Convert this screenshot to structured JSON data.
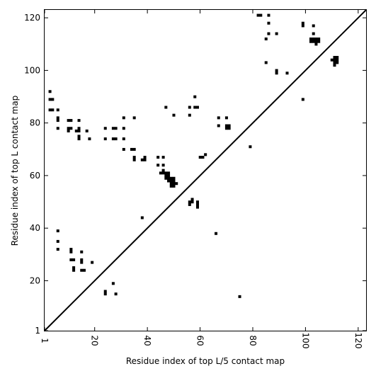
{
  "chart_data": {
    "type": "scatter",
    "title": "",
    "xlabel": "Residue index of top L/5 contact map",
    "ylabel": "Residue index of top L contact map",
    "xlim": [
      1,
      123
    ],
    "ylim": [
      1,
      123
    ],
    "x_ticks": [
      1,
      20,
      40,
      60,
      80,
      100,
      120
    ],
    "y_ticks": [
      1,
      20,
      40,
      60,
      80,
      100,
      120
    ],
    "x_tick_rotation_deg": 90,
    "grid": false,
    "legend": "none",
    "marker_color": "#000000",
    "diagonal": {
      "from": [
        1,
        1
      ],
      "to": [
        123,
        123
      ],
      "color": "#000000"
    },
    "series": [
      {
        "points_upper_left": [
          [
            3,
            92
          ],
          [
            3,
            89
          ],
          [
            4,
            89
          ],
          [
            3,
            85
          ],
          [
            4,
            85
          ],
          [
            6,
            85
          ],
          [
            6,
            82
          ],
          [
            6,
            81
          ],
          [
            6,
            78
          ],
          [
            10,
            81
          ],
          [
            11,
            81
          ],
          [
            14,
            81
          ],
          [
            10,
            78
          ],
          [
            11,
            78
          ],
          [
            10,
            77
          ],
          [
            13,
            77
          ],
          [
            14,
            78
          ],
          [
            14,
            77
          ],
          [
            14,
            75
          ],
          [
            14,
            74
          ],
          [
            17,
            77
          ],
          [
            18,
            74
          ],
          [
            24,
            78
          ],
          [
            24,
            74
          ],
          [
            27,
            78
          ],
          [
            28,
            78
          ],
          [
            27,
            74
          ],
          [
            28,
            74
          ],
          [
            31,
            82
          ],
          [
            31,
            78
          ],
          [
            31,
            74
          ],
          [
            31,
            70
          ],
          [
            34,
            70
          ],
          [
            35,
            70
          ],
          [
            35,
            82
          ],
          [
            35,
            67
          ],
          [
            35,
            66
          ],
          [
            38,
            66
          ],
          [
            39,
            66
          ],
          [
            39,
            67
          ],
          [
            44,
            67
          ],
          [
            46,
            67
          ],
          [
            44,
            64
          ],
          [
            46,
            64
          ],
          [
            47,
            86
          ],
          [
            50,
            83
          ],
          [
            56,
            86
          ],
          [
            56,
            83
          ],
          [
            58,
            90
          ],
          [
            58,
            86
          ],
          [
            59,
            86
          ],
          [
            45,
            61
          ],
          [
            46,
            61
          ],
          [
            46,
            62
          ],
          [
            47,
            61
          ],
          [
            47,
            60
          ],
          [
            48,
            61
          ],
          [
            48,
            60
          ],
          [
            47,
            59
          ],
          [
            48,
            59
          ],
          [
            48,
            58
          ],
          [
            49,
            59
          ],
          [
            49,
            58
          ],
          [
            50,
            58
          ],
          [
            50,
            59
          ],
          [
            49,
            57
          ],
          [
            49,
            56
          ],
          [
            50,
            57
          ],
          [
            50,
            56
          ],
          [
            51,
            57
          ],
          [
            60,
            67
          ],
          [
            61,
            67
          ],
          [
            62,
            68
          ],
          [
            67,
            82
          ],
          [
            70,
            82
          ],
          [
            67,
            79
          ],
          [
            70,
            79
          ],
          [
            71,
            79
          ],
          [
            70,
            78
          ],
          [
            71,
            78
          ],
          [
            79,
            71
          ],
          [
            82,
            121
          ],
          [
            83,
            121
          ],
          [
            86,
            121
          ],
          [
            86,
            118
          ],
          [
            86,
            114
          ],
          [
            85,
            112
          ],
          [
            89,
            114
          ],
          [
            85,
            103
          ],
          [
            89,
            100
          ],
          [
            89,
            99
          ],
          [
            93,
            99
          ],
          [
            99,
            118
          ],
          [
            99,
            117
          ],
          [
            103,
            117
          ],
          [
            103,
            114
          ],
          [
            102,
            112
          ],
          [
            103,
            112
          ],
          [
            104,
            112
          ],
          [
            105,
            112
          ],
          [
            102,
            111
          ],
          [
            103,
            111
          ],
          [
            104,
            111
          ],
          [
            105,
            111
          ],
          [
            104,
            110
          ],
          [
            99,
            89
          ],
          [
            110,
            104
          ],
          [
            111,
            105
          ],
          [
            112,
            105
          ],
          [
            111,
            104
          ],
          [
            112,
            104
          ],
          [
            111,
            103
          ],
          [
            112,
            103
          ],
          [
            111,
            102
          ]
        ],
        "points_lower_right": [
          [
            6,
            39
          ],
          [
            6,
            35
          ],
          [
            6,
            32
          ],
          [
            11,
            32
          ],
          [
            11,
            31
          ],
          [
            15,
            31
          ],
          [
            11,
            28
          ],
          [
            12,
            28
          ],
          [
            15,
            28
          ],
          [
            15,
            27
          ],
          [
            12,
            25
          ],
          [
            12,
            24
          ],
          [
            15,
            24
          ],
          [
            16,
            24
          ],
          [
            19,
            27
          ],
          [
            24,
            16
          ],
          [
            24,
            15
          ],
          [
            27,
            19
          ],
          [
            28,
            15
          ],
          [
            38,
            44
          ],
          [
            56,
            50
          ],
          [
            56,
            49
          ],
          [
            57,
            51
          ],
          [
            57,
            50
          ],
          [
            59,
            50
          ],
          [
            59,
            49
          ],
          [
            59,
            48
          ],
          [
            66,
            38
          ],
          [
            75,
            14
          ]
        ]
      }
    ]
  }
}
